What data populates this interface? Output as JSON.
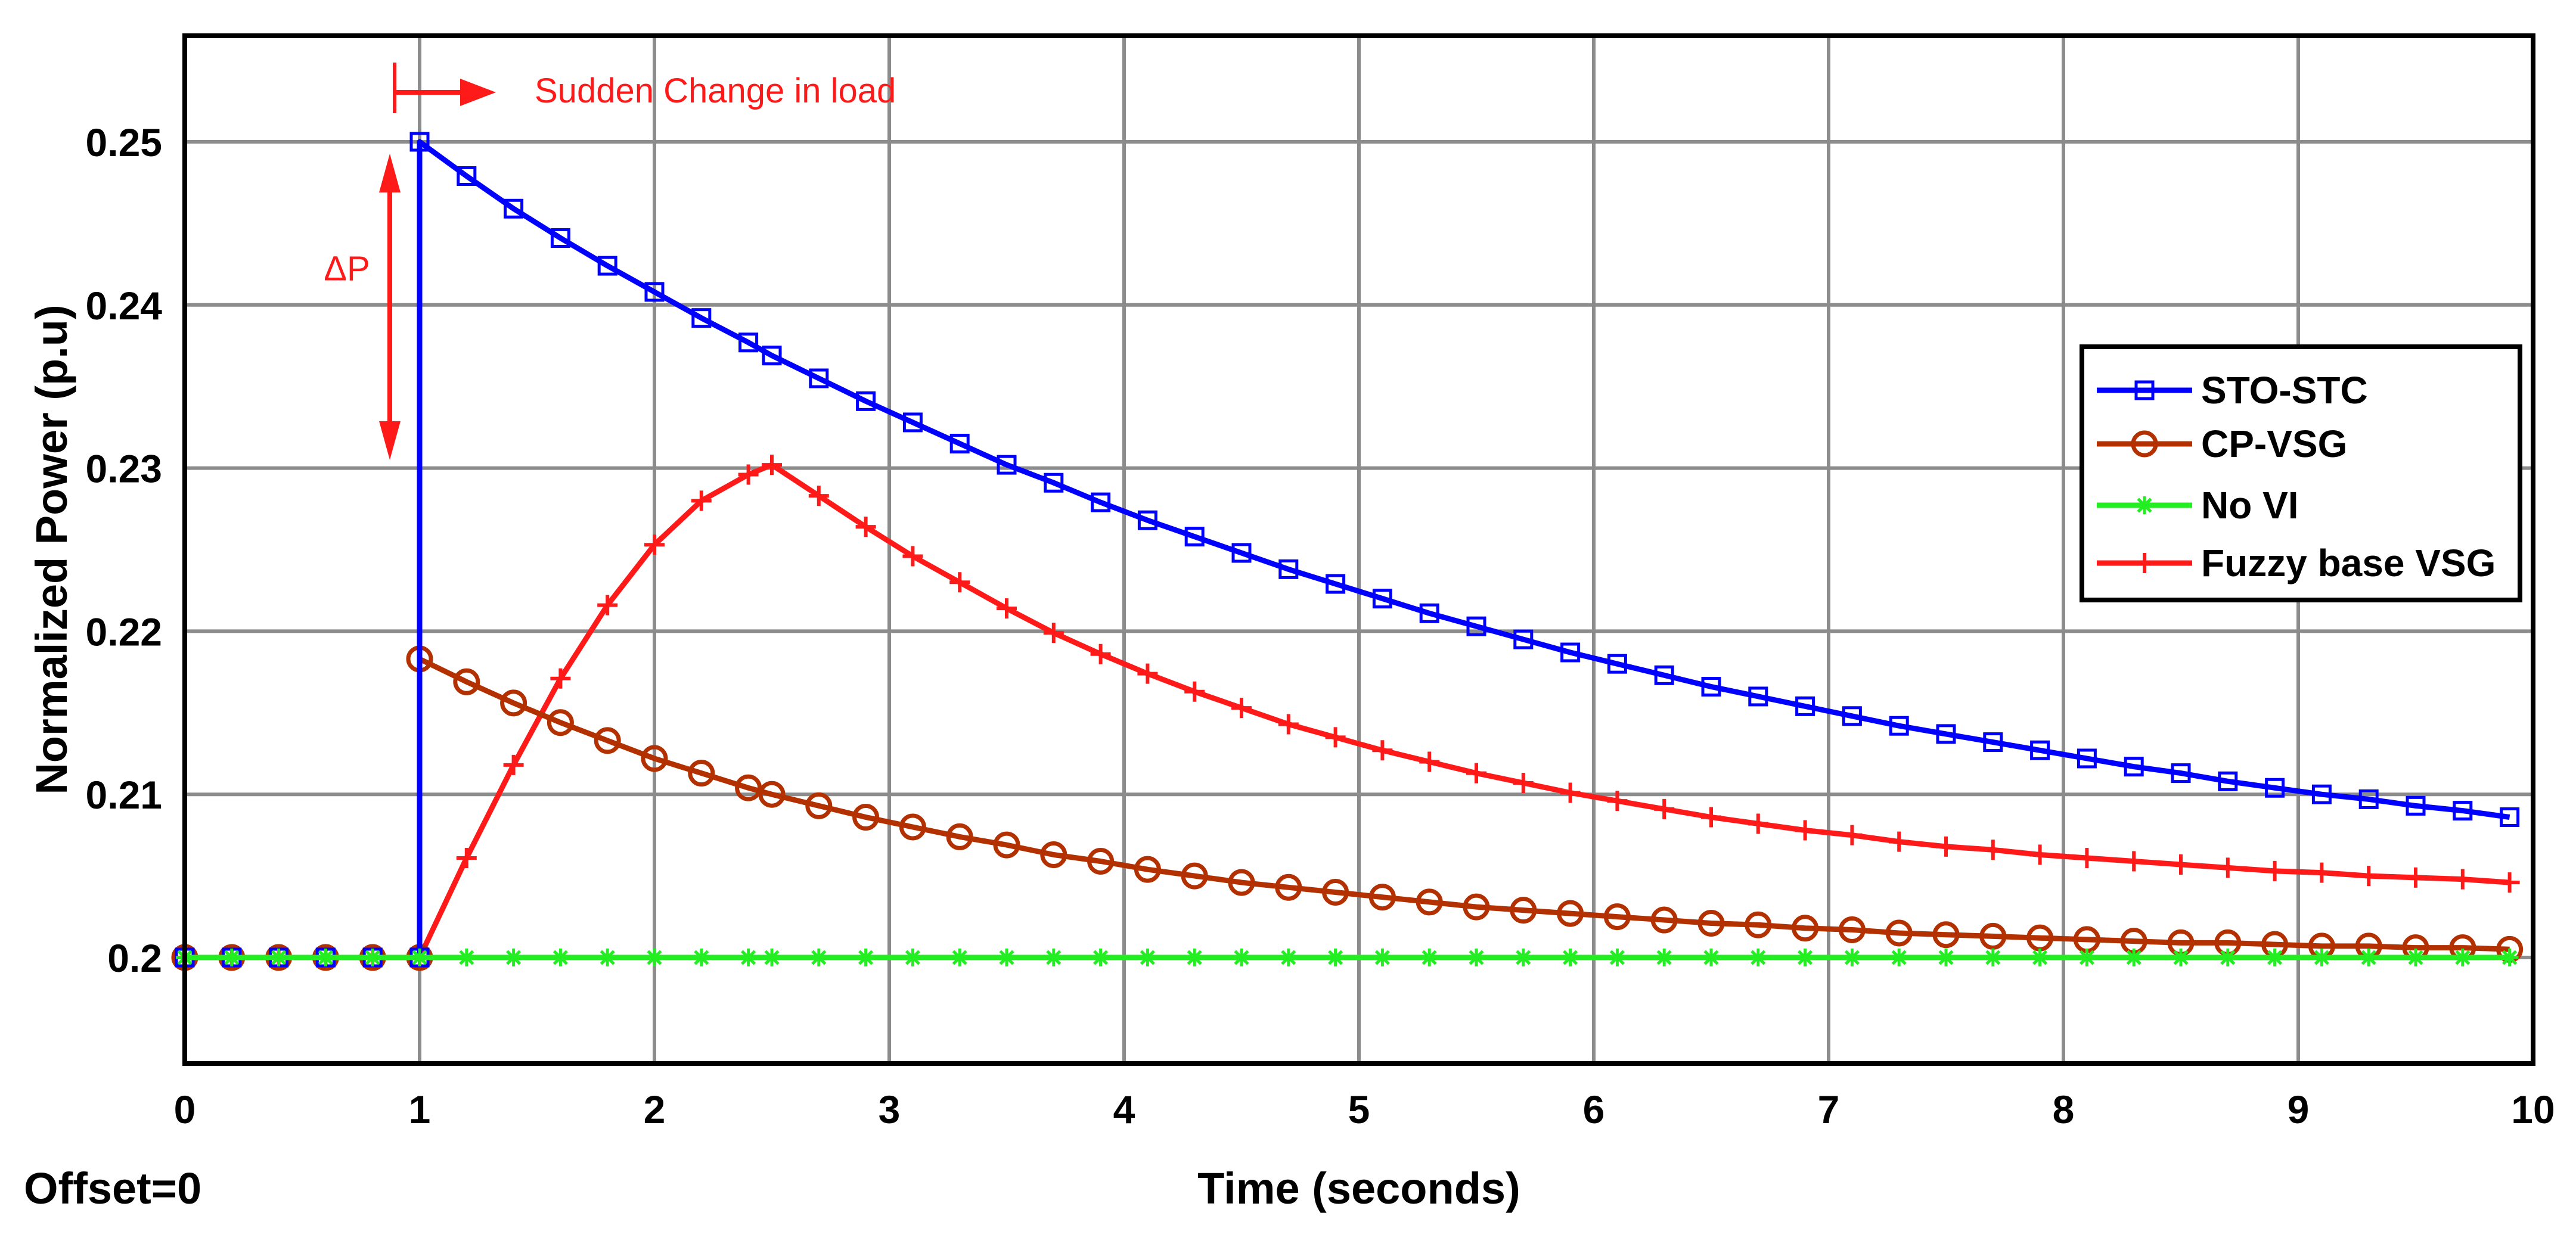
{
  "chart_data": {
    "type": "line",
    "title": "",
    "xlabel": "Time (seconds)",
    "ylabel": "Normalized Power (p.u)",
    "xlim": [
      0,
      10
    ],
    "ylim": [
      0.1935,
      0.2565
    ],
    "xticks": [
      0,
      1,
      2,
      3,
      4,
      5,
      6,
      7,
      8,
      9,
      10
    ],
    "xtick_labels": [
      "0",
      "1",
      "2",
      "3",
      "4",
      "5",
      "6",
      "7",
      "8",
      "9",
      "10"
    ],
    "yticks": [
      0.2,
      0.21,
      0.22,
      0.23,
      0.24,
      0.25
    ],
    "ytick_labels": [
      "0.2",
      "0.21",
      "0.22",
      "0.23",
      "0.24",
      "0.25"
    ],
    "grid": true,
    "legend_position": "right",
    "offset_label": "Offset=0",
    "annotations": {
      "load_change": "Sudden Change in load",
      "delta_p": "ΔP"
    },
    "series": [
      {
        "name": "STO-STC",
        "color": "#0000ff",
        "marker": "square",
        "x": [
          0,
          0.2,
          0.4,
          0.6,
          0.8,
          1,
          1,
          1.2,
          1.4,
          1.6,
          1.8,
          2,
          2.2,
          2.4,
          2.5,
          2.7,
          2.9,
          3.1,
          3.3,
          3.5,
          3.7,
          3.9,
          4.1,
          4.3,
          4.5,
          4.7,
          4.9,
          5.1,
          5.3,
          5.5,
          5.7,
          5.9,
          6.1,
          6.3,
          6.5,
          6.7,
          6.9,
          7.1,
          7.3,
          7.5,
          7.7,
          7.9,
          8.1,
          8.3,
          8.5,
          8.7,
          8.9,
          9.1,
          9.3,
          9.5,
          9.7,
          9.9
        ],
        "y": [
          0.2,
          0.2,
          0.2,
          0.2,
          0.2,
          0.2,
          0.25,
          0.2479,
          0.2459,
          0.2441,
          0.2424,
          0.2408,
          0.2392,
          0.2377,
          0.2369,
          0.2355,
          0.2341,
          0.2328,
          0.2315,
          0.2302,
          0.2291,
          0.2279,
          0.2268,
          0.2258,
          0.2248,
          0.2238,
          0.2229,
          0.222,
          0.2211,
          0.2203,
          0.2195,
          0.2187,
          0.218,
          0.2173,
          0.2166,
          0.216,
          0.2154,
          0.2148,
          0.2142,
          0.2137,
          0.2132,
          0.2127,
          0.2122,
          0.2117,
          0.2113,
          0.2108,
          0.2104,
          0.21,
          0.2097,
          0.2093,
          0.209,
          0.2086
        ]
      },
      {
        "name": "CP-VSG",
        "color": "#b33000",
        "marker": "circle",
        "x": [
          0,
          0.2,
          0.4,
          0.6,
          0.8,
          1,
          1,
          1.2,
          1.4,
          1.6,
          1.8,
          2,
          2.2,
          2.4,
          2.5,
          2.7,
          2.9,
          3.1,
          3.3,
          3.5,
          3.7,
          3.9,
          4.1,
          4.3,
          4.5,
          4.7,
          4.9,
          5.1,
          5.3,
          5.5,
          5.7,
          5.9,
          6.1,
          6.3,
          6.5,
          6.7,
          6.9,
          7.1,
          7.3,
          7.5,
          7.7,
          7.9,
          8.1,
          8.3,
          8.5,
          8.7,
          8.9,
          9.1,
          9.3,
          9.5,
          9.7,
          9.9
        ],
        "y": [
          0.2,
          0.2,
          0.2,
          0.2,
          0.2,
          0.2,
          0.2183,
          0.2169,
          0.2156,
          0.2144,
          0.2133,
          0.2122,
          0.2113,
          0.2104,
          0.21,
          0.2093,
          0.2086,
          0.208,
          0.2074,
          0.2069,
          0.2063,
          0.2059,
          0.2054,
          0.205,
          0.2046,
          0.2043,
          0.204,
          0.2037,
          0.2034,
          0.2031,
          0.2029,
          0.2027,
          0.2025,
          0.2023,
          0.2021,
          0.202,
          0.2018,
          0.2017,
          0.2015,
          0.2014,
          0.2013,
          0.2012,
          0.2011,
          0.201,
          0.2009,
          0.2009,
          0.2008,
          0.2007,
          0.2007,
          0.2006,
          0.2006,
          0.2005
        ]
      },
      {
        "name": "No VI",
        "color": "#22ee22",
        "marker": "asterisk",
        "x": [
          0,
          0.2,
          0.4,
          0.6,
          0.8,
          1,
          1.2,
          1.4,
          1.6,
          1.8,
          2,
          2.2,
          2.4,
          2.5,
          2.7,
          2.9,
          3.1,
          3.3,
          3.5,
          3.7,
          3.9,
          4.1,
          4.3,
          4.5,
          4.7,
          4.9,
          5.1,
          5.3,
          5.5,
          5.7,
          5.9,
          6.1,
          6.3,
          6.5,
          6.7,
          6.9,
          7.1,
          7.3,
          7.5,
          7.7,
          7.9,
          8.1,
          8.3,
          8.5,
          8.7,
          8.9,
          9.1,
          9.3,
          9.5,
          9.7,
          9.9
        ],
        "y": [
          0.2,
          0.2,
          0.2,
          0.2,
          0.2,
          0.2,
          0.2,
          0.2,
          0.2,
          0.2,
          0.2,
          0.2,
          0.2,
          0.2,
          0.2,
          0.2,
          0.2,
          0.2,
          0.2,
          0.2,
          0.2,
          0.2,
          0.2,
          0.2,
          0.2,
          0.2,
          0.2,
          0.2,
          0.2,
          0.2,
          0.2,
          0.2,
          0.2,
          0.2,
          0.2,
          0.2,
          0.2,
          0.2,
          0.2,
          0.2,
          0.2,
          0.2,
          0.2,
          0.2,
          0.2,
          0.2,
          0.2,
          0.2,
          0.2,
          0.2,
          0.2
        ]
      },
      {
        "name": "Fuzzy base VSG",
        "color": "#ff1a1a",
        "marker": "plus",
        "x": [
          0,
          0.2,
          0.4,
          0.6,
          0.8,
          1,
          1.2,
          1.4,
          1.6,
          1.8,
          2,
          2.2,
          2.4,
          2.5,
          2.7,
          2.9,
          3.1,
          3.3,
          3.5,
          3.7,
          3.9,
          4.1,
          4.3,
          4.5,
          4.7,
          4.9,
          5.1,
          5.3,
          5.5,
          5.7,
          5.9,
          6.1,
          6.3,
          6.5,
          6.7,
          6.9,
          7.1,
          7.3,
          7.5,
          7.7,
          7.9,
          8.1,
          8.3,
          8.5,
          8.7,
          8.9,
          9.1,
          9.3,
          9.5,
          9.7,
          9.9
        ],
        "y": [
          0.2,
          0.2,
          0.2,
          0.2,
          0.2,
          0.2,
          0.2061,
          0.2118,
          0.2171,
          0.2216,
          0.2253,
          0.228,
          0.2296,
          0.2302,
          0.2283,
          0.2264,
          0.2246,
          0.223,
          0.2214,
          0.2199,
          0.2186,
          0.2174,
          0.2163,
          0.2153,
          0.2143,
          0.2135,
          0.2127,
          0.212,
          0.2113,
          0.2107,
          0.2101,
          0.2096,
          0.2091,
          0.2086,
          0.2082,
          0.2078,
          0.2075,
          0.2071,
          0.2068,
          0.2066,
          0.2063,
          0.2061,
          0.2059,
          0.2057,
          0.2055,
          0.2053,
          0.2052,
          0.205,
          0.2049,
          0.2048,
          0.2046
        ]
      }
    ]
  }
}
